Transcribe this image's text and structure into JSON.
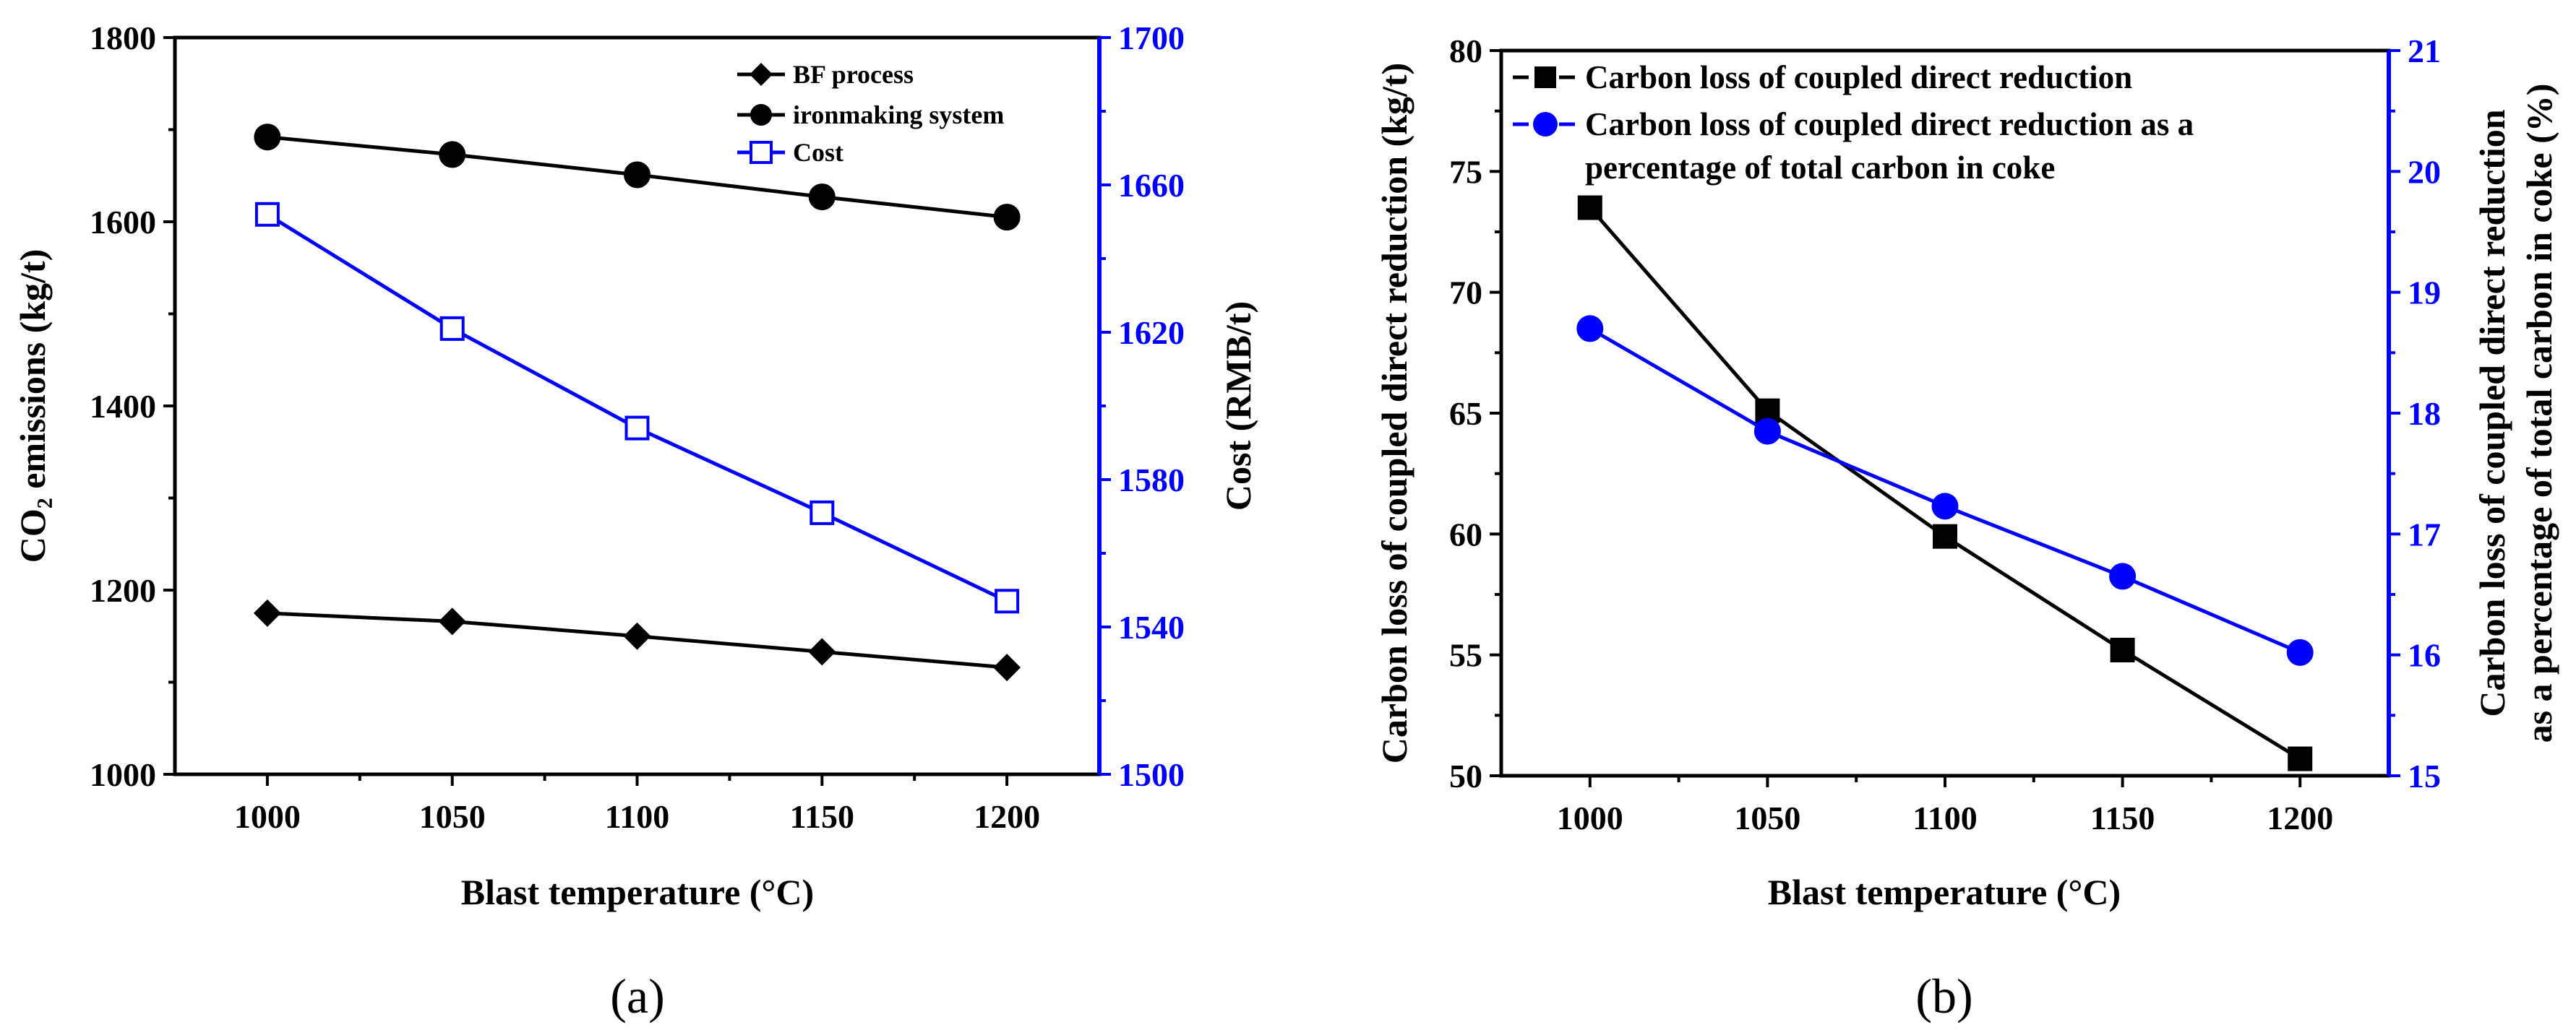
{
  "chart_data": [
    {
      "panel_label": "(a)",
      "type": "line",
      "title": "",
      "xlabel": "Blast temperature (°C)",
      "ylabel_left": "CO₂ emissions (kg/t)",
      "ylabel_right": "Cost (RMB/t)",
      "x": [
        1000,
        1050,
        1100,
        1150,
        1200
      ],
      "xlim": [
        975,
        1225
      ],
      "ylim_left": [
        1000,
        1800
      ],
      "ylim_right": [
        1500,
        1700
      ],
      "xticks": [
        1000,
        1050,
        1100,
        1150,
        1200
      ],
      "yticks_left": [
        1000,
        1200,
        1400,
        1600,
        1800
      ],
      "yticks_right": [
        1500,
        1540,
        1580,
        1620,
        1660,
        1700
      ],
      "colors": {
        "left_axis": "#000000",
        "right_axis": "#0000ff"
      },
      "series": [
        {
          "name": "BF process",
          "axis": "left",
          "marker": "diamond",
          "filled": true,
          "color": "#000000",
          "values": [
            1175,
            1166,
            1150,
            1133,
            1116
          ]
        },
        {
          "name": "ironmaking system",
          "axis": "left",
          "marker": "circle",
          "filled": true,
          "color": "#000000",
          "values": [
            1692,
            1673,
            1651,
            1627,
            1605
          ]
        },
        {
          "name": "Cost",
          "axis": "right",
          "marker": "square",
          "filled": false,
          "color": "#0000ff",
          "values": [
            1652,
            1621,
            1594,
            1571,
            1547
          ]
        }
      ],
      "legend": "top-right"
    },
    {
      "panel_label": "(b)",
      "type": "line",
      "title": "",
      "xlabel": "Blast temperature (°C)",
      "ylabel_left": "Carbon loss of coupled direct reduction (kg/t)",
      "ylabel_right_line1": "Carbon loss of coupled direct reduction",
      "ylabel_right_line2": "as a percentage of total carbon in coke (%)",
      "x": [
        1000,
        1050,
        1100,
        1150,
        1200
      ],
      "xlim": [
        975,
        1225
      ],
      "ylim_left": [
        50,
        80
      ],
      "ylim_right": [
        15,
        21
      ],
      "xticks": [
        1000,
        1050,
        1100,
        1150,
        1200
      ],
      "yticks_left": [
        50,
        55,
        60,
        65,
        70,
        75,
        80
      ],
      "yticks_right": [
        15,
        16,
        17,
        18,
        19,
        20,
        21
      ],
      "colors": {
        "left_axis": "#000000",
        "right_axis": "#0000ff"
      },
      "series": [
        {
          "name": "Carbon loss of coupled direct reduction",
          "axis": "left",
          "marker": "square",
          "filled": true,
          "color": "#000000",
          "values": [
            73.5,
            65.1,
            59.9,
            55.2,
            50.7
          ]
        },
        {
          "name_line1": "Carbon loss of coupled direct reduction as a",
          "name_line2": "percentage of total carbon in coke",
          "axis": "right",
          "marker": "circle",
          "filled": true,
          "color": "#0000ff",
          "values": [
            18.7,
            17.85,
            17.23,
            16.65,
            16.02
          ]
        }
      ],
      "legend": "top-left"
    }
  ]
}
